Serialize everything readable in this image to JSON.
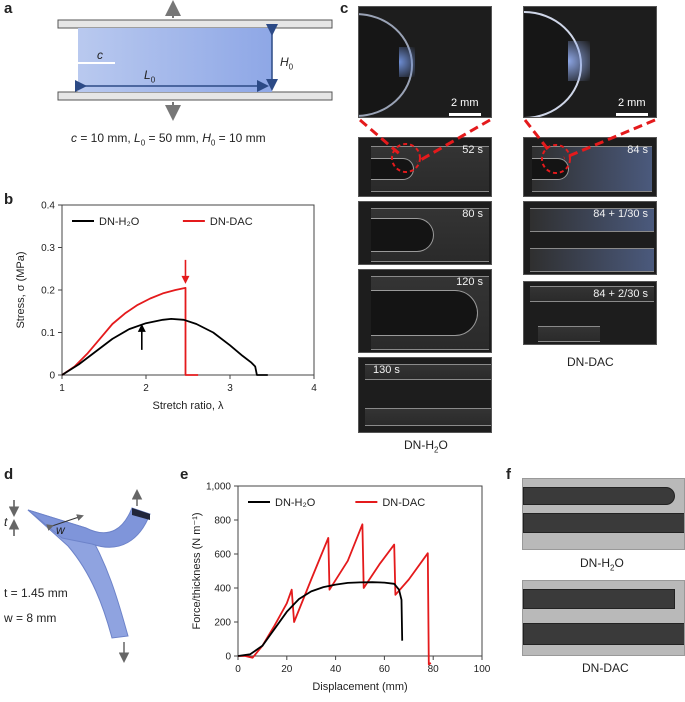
{
  "panels": {
    "a": {
      "label": "a",
      "c_label": "c",
      "L0_label": "L",
      "L0_sub": "0",
      "H0_label": "H",
      "H0_sub": "0",
      "dims_c": "c",
      "dims_c_val": " = 10 mm, ",
      "dims_L": "L",
      "dims_L_sub": "0",
      "dims_L_val": " = 50 mm, ",
      "dims_H": "H",
      "dims_H_sub": "0",
      "dims_H_val": " = 10 mm"
    },
    "b": {
      "label": "b"
    },
    "c": {
      "label": "c",
      "scale_left": "2 mm",
      "scale_right": "2 mm",
      "left_times": [
        "52 s",
        "80 s",
        "120 s",
        "130 s"
      ],
      "right_times": [
        "84 s",
        "84 + 1/30 s",
        "84 + 2/30 s"
      ],
      "caption_left_main": "DN-H",
      "caption_left_sub": "2",
      "caption_left_end": "O",
      "caption_right": "DN-DAC"
    },
    "d": {
      "label": "d",
      "t_symbol": "t",
      "w_symbol": "w",
      "t_value": "t = 1.45 mm",
      "w_value": "w = 8 mm"
    },
    "e": {
      "label": "e"
    },
    "f": {
      "label": "f",
      "caption_top_main": "DN-H",
      "caption_top_sub": "2",
      "caption_top_end": "O",
      "caption_bottom": "DN-DAC"
    }
  },
  "chart_data": [
    {
      "panel": "b",
      "type": "line",
      "xlabel": "Stretch ratio, λ",
      "ylabel": "Stress, σ (MPa)",
      "xlim": [
        1,
        4
      ],
      "ylim": [
        0,
        0.4
      ],
      "xticks": [
        "1",
        "2",
        "3",
        "4"
      ],
      "yticks": [
        "0",
        "0.1",
        "0.2",
        "0.3",
        "0.4"
      ],
      "legend": [
        "DN-H₂O",
        "DN-DAC"
      ],
      "legend_position": "top",
      "colors": {
        "DN-H2O": "#000000",
        "DN-DAC": "#e41a1c"
      },
      "series": [
        {
          "name": "DN-DAC",
          "x": [
            1.0,
            1.15,
            1.3,
            1.45,
            1.6,
            1.75,
            1.9,
            2.05,
            2.2,
            2.35,
            2.47,
            2.47,
            2.52,
            2.62
          ],
          "y": [
            0.0,
            0.02,
            0.05,
            0.085,
            0.12,
            0.145,
            0.165,
            0.18,
            0.192,
            0.2,
            0.205,
            0.0,
            0.0,
            0.0
          ]
        },
        {
          "name": "DN-H2O",
          "x": [
            1.0,
            1.2,
            1.4,
            1.6,
            1.8,
            2.0,
            2.2,
            2.3,
            2.45,
            2.6,
            2.8,
            3.0,
            3.15,
            3.25,
            3.3,
            3.32,
            3.45
          ],
          "y": [
            0.0,
            0.025,
            0.055,
            0.085,
            0.108,
            0.122,
            0.13,
            0.132,
            0.13,
            0.12,
            0.1,
            0.07,
            0.045,
            0.03,
            0.02,
            0.0,
            0.0
          ]
        }
      ],
      "annotations": [
        {
          "kind": "arrow-down",
          "series": "DN-DAC",
          "x": 2.47,
          "y": 0.205
        },
        {
          "kind": "arrow-up",
          "series": "DN-H2O",
          "x": 1.95,
          "y": 0.125
        }
      ]
    },
    {
      "panel": "e",
      "type": "line",
      "xlabel": "Displacement (mm)",
      "ylabel": "Force/thickness (N m⁻¹)",
      "xlim": [
        0,
        100
      ],
      "ylim": [
        0,
        1000
      ],
      "xticks": [
        "0",
        "20",
        "40",
        "60",
        "80",
        "100"
      ],
      "yticks": [
        "0",
        "200",
        "400",
        "600",
        "800",
        "1,000"
      ],
      "legend": [
        "DN-H₂O",
        "DN-DAC"
      ],
      "legend_position": "top",
      "colors": {
        "DN-H2O": "#000000",
        "DN-DAC": "#e41a1c"
      },
      "series": [
        {
          "name": "DN-DAC",
          "x": [
            0,
            3,
            6,
            10,
            15,
            20,
            22,
            23,
            30,
            37,
            37.5,
            45,
            51,
            51.5,
            58,
            64,
            64.5,
            70,
            77.8,
            78.2,
            79
          ],
          "y": [
            0,
            0,
            -10,
            60,
            180,
            310,
            390,
            200,
            450,
            695,
            390,
            560,
            775,
            400,
            540,
            655,
            360,
            450,
            605,
            -50,
            -40
          ]
        },
        {
          "name": "DN-H2O",
          "x": [
            0,
            5,
            10,
            15,
            20,
            25,
            30,
            35,
            40,
            45,
            50,
            55,
            60,
            64,
            66,
            67,
            67.3
          ],
          "y": [
            0,
            10,
            60,
            160,
            260,
            335,
            380,
            405,
            420,
            430,
            433,
            434,
            432,
            425,
            390,
            330,
            90
          ]
        }
      ]
    }
  ]
}
